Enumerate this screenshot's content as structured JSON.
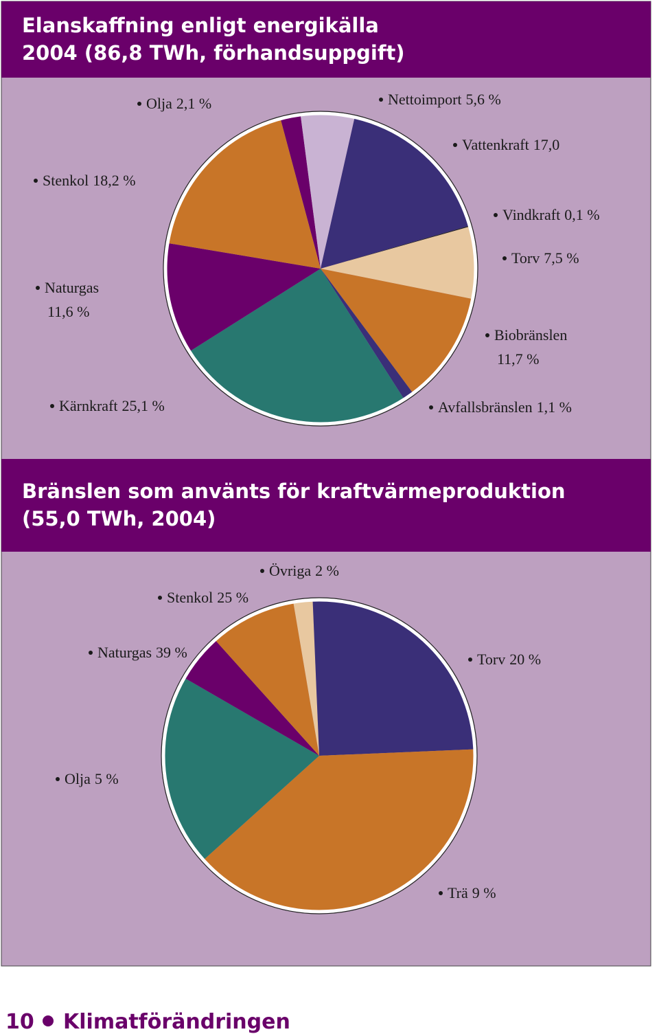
{
  "chart_data": [
    {
      "type": "pie",
      "title": "Elanskaffning enligt energikälla 2004 (86,8 TWh, förhandsuppgift)",
      "categories": [
        "Olja",
        "Nettoimport",
        "Vattenkraft",
        "Vindkraft",
        "Torv",
        "Biobränslen",
        "Avfallsbränslen",
        "Kärnkraft",
        "Naturgas",
        "Stenkol"
      ],
      "values": [
        2.1,
        5.6,
        17.0,
        0.1,
        7.5,
        11.7,
        1.1,
        25.1,
        11.6,
        18.2
      ],
      "value_labels": [
        "2,1 %",
        "5,6 %",
        "17,0",
        "0,1 %",
        "7,5 %",
        "11,7 %",
        "1,1 %",
        "25,1 %",
        "11,6 %",
        "18,2 %"
      ],
      "colors": [
        "#6a006a",
        "#c9b3d3",
        "#3a2f78",
        "#222222",
        "#e8c8a0",
        "#c87528",
        "#3a2f78",
        "#287870",
        "#6a006a",
        "#c87528"
      ]
    },
    {
      "type": "pie",
      "title": "Bränslen som använts för kraftvärmeproduktion (55,0 TWh, 2004)",
      "categories": [
        "Övriga",
        "Stenkol",
        "Naturgas",
        "Torv",
        "Olja",
        "Trä"
      ],
      "values": [
        2,
        25,
        39,
        20,
        5,
        9
      ],
      "value_labels": [
        "2 %",
        "25 %",
        "39 %",
        "20 %",
        "5 %",
        "9 %"
      ],
      "colors": [
        "#e8c8a0",
        "#3a2f78",
        "#c87528",
        "#287870",
        "#6a006a",
        "#c87528"
      ]
    }
  ],
  "footer": {
    "page": "10",
    "title": "Klimatförändringen"
  }
}
